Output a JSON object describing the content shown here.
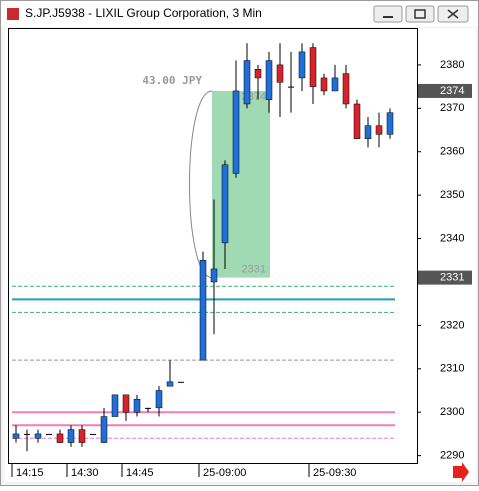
{
  "chart_data": {
    "type": "candlestick",
    "title": "S.JP.J5938 - LIXIL Group Corporation, 3 Min",
    "categories": [
      "14:15",
      null,
      null,
      null,
      null,
      "14:30",
      null,
      null,
      null,
      null,
      "14:45",
      null,
      null,
      null,
      null,
      null,
      null,
      "25-09:00",
      null,
      null,
      null,
      null,
      null,
      null,
      null,
      null,
      null,
      "25-09:30",
      null,
      null,
      null,
      null,
      null,
      null,
      null
    ],
    "open": [
      2294,
      2295,
      2294,
      2295,
      2295,
      2293,
      2296,
      2295,
      2293,
      2299,
      2304,
      2300,
      2301,
      2301,
      2306,
      2307,
      null,
      2312,
      2330,
      2339,
      2355,
      2371,
      2379,
      2372,
      2380,
      2375,
      2377,
      2384,
      2377,
      2374,
      2378,
      2371,
      2363,
      2366,
      2364
    ],
    "high": [
      2297,
      2296,
      2296,
      2295,
      2296,
      2297,
      2297,
      2295,
      2301,
      2304,
      2304,
      2304,
      2301,
      2306,
      2312,
      2307,
      null,
      2337,
      2349,
      2358,
      2381,
      2385,
      2380,
      2383,
      2385,
      2383,
      2385,
      2385,
      2378,
      2380,
      2380,
      2372,
      2368,
      2369,
      2370
    ],
    "low": [
      2293,
      2291,
      2293,
      2295,
      2293,
      2292,
      2292,
      2295,
      2293,
      2299,
      2298,
      2299,
      2300,
      2299,
      2306,
      2307,
      null,
      2312,
      2318,
      2333,
      2354,
      2370,
      2372,
      2369,
      2368,
      2369,
      2374,
      2371,
      2373,
      2374,
      2370,
      2363,
      2361,
      2361,
      2363
    ],
    "close": [
      2295,
      2295,
      2295,
      2295,
      2293,
      2296,
      2293,
      2295,
      2299,
      2304,
      2300,
      2303,
      2301,
      2305,
      2307,
      2307,
      null,
      2335,
      2333,
      2357,
      2374,
      2381,
      2377,
      2381,
      2376,
      2375,
      2383,
      2375,
      2374,
      2377,
      2371,
      2363,
      2366,
      2364,
      2369
    ],
    "up_color": "#1e6fd9",
    "down_color": "#d8232a",
    "ylim": [
      2288.3,
      2388.5
    ],
    "yticks": [
      2290,
      2300,
      2310,
      2320,
      2340,
      2350,
      2360,
      2370,
      2380
    ],
    "price_markers": [
      2374,
      2331
    ],
    "levels": [
      {
        "value": 2329,
        "color": "#3cb371",
        "dashed": true
      },
      {
        "value": 2326,
        "color": "#19a3b8",
        "dashed": false
      },
      {
        "value": 2323,
        "color": "#3cb371",
        "dashed": true
      },
      {
        "value": 2312,
        "color": "#999999",
        "dashed": true
      },
      {
        "value": 2300,
        "color": "#ef7fb8",
        "dashed": false
      },
      {
        "value": 2297,
        "color": "#ef7fb8",
        "dashed": false
      },
      {
        "value": 2294,
        "color": "#ef7fb8",
        "dashed": true
      }
    ],
    "measure": {
      "label": "43.00 JPY",
      "from": 2331,
      "to": 2374
    }
  }
}
